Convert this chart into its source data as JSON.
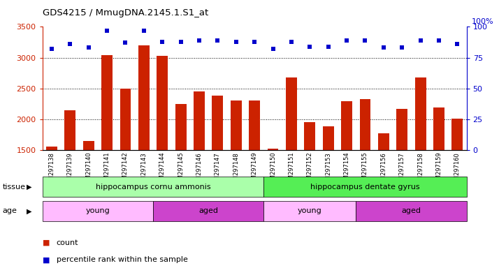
{
  "title": "GDS4215 / MmugDNA.2145.1.S1_at",
  "samples": [
    "GSM297138",
    "GSM297139",
    "GSM297140",
    "GSM297141",
    "GSM297142",
    "GSM297143",
    "GSM297144",
    "GSM297145",
    "GSM297146",
    "GSM297147",
    "GSM297148",
    "GSM297149",
    "GSM297150",
    "GSM297151",
    "GSM297152",
    "GSM297153",
    "GSM297154",
    "GSM297155",
    "GSM297156",
    "GSM297157",
    "GSM297158",
    "GSM297159",
    "GSM297160"
  ],
  "counts": [
    1560,
    2150,
    1650,
    3040,
    2500,
    3200,
    3030,
    2250,
    2450,
    2380,
    2310,
    2310,
    1520,
    2680,
    1950,
    1890,
    2290,
    2330,
    1770,
    2170,
    2680,
    2190,
    2010
  ],
  "percentile_ranks": [
    82,
    86,
    83,
    97,
    87,
    97,
    88,
    88,
    89,
    89,
    88,
    88,
    82,
    88,
    84,
    84,
    89,
    89,
    83,
    83,
    89,
    89,
    86
  ],
  "ymin": 1500,
  "ymax": 3500,
  "yticks": [
    1500,
    2000,
    2500,
    3000,
    3500
  ],
  "y2min": 0,
  "y2max": 100,
  "y2ticks": [
    0,
    25,
    50,
    75,
    100
  ],
  "bar_color": "#cc2200",
  "dot_color": "#0000cc",
  "tissue_groups": [
    {
      "label": "hippocampus cornu ammonis",
      "start": 0,
      "end": 12,
      "color": "#aaffaa"
    },
    {
      "label": "hippocampus dentate gyrus",
      "start": 12,
      "end": 23,
      "color": "#55ee55"
    }
  ],
  "age_groups": [
    {
      "label": "young",
      "start": 0,
      "end": 6,
      "color": "#ffbbff"
    },
    {
      "label": "aged",
      "start": 6,
      "end": 12,
      "color": "#cc44cc"
    },
    {
      "label": "young",
      "start": 12,
      "end": 17,
      "color": "#ffbbff"
    },
    {
      "label": "aged",
      "start": 17,
      "end": 23,
      "color": "#cc44cc"
    }
  ],
  "tissue_label": "tissue",
  "age_label": "age",
  "legend_count_label": "count",
  "legend_pct_label": "percentile rank within the sample",
  "background_color": "#ffffff",
  "plot_bg_color": "#f0f0f0",
  "grid_color": "#000000",
  "grid_linestyle": ":",
  "grid_linewidth": 0.7
}
